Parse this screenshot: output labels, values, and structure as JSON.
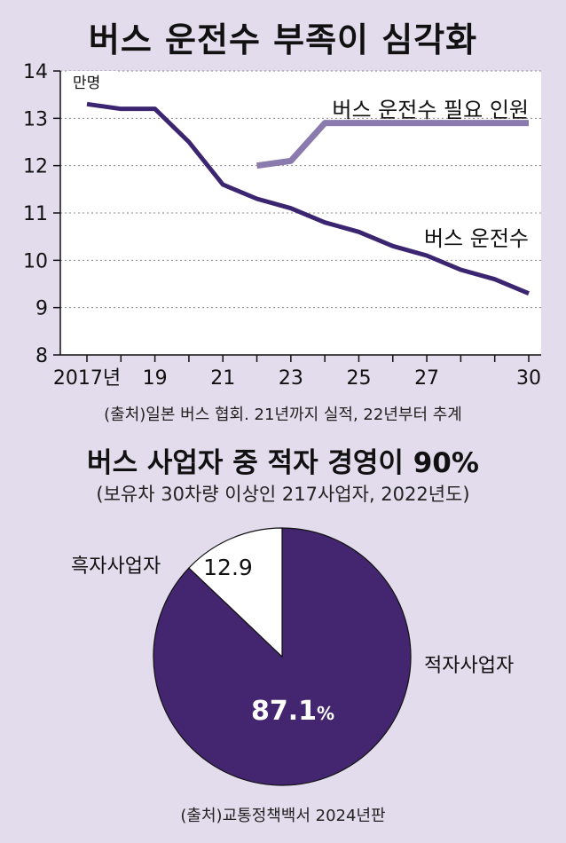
{
  "title": "버스 운전수 부족이 심각화",
  "chart_data": [
    {
      "type": "line",
      "unit_label": "만명",
      "x": [
        2017,
        2018,
        2019,
        2020,
        2021,
        2022,
        2023,
        2024,
        2025,
        2026,
        2027,
        2028,
        2029,
        2030
      ],
      "x_tick_values": [
        2017,
        2019,
        2021,
        2023,
        2025,
        2027,
        2030
      ],
      "x_tick_labels": [
        "2017년",
        "19",
        "21",
        "23",
        "25",
        "27",
        "30"
      ],
      "y_ticks": [
        8,
        9,
        10,
        11,
        12,
        13,
        14
      ],
      "ylim": [
        8,
        14
      ],
      "grid": true,
      "series": [
        {
          "name": "버스 운전수 필요 인원",
          "color": "#8a7aad",
          "x": [
            2022,
            2023,
            2024,
            2025,
            2026,
            2027,
            2028,
            2029,
            2030
          ],
          "values": [
            12.0,
            12.1,
            12.9,
            12.9,
            12.9,
            12.9,
            12.9,
            12.9,
            12.9
          ]
        },
        {
          "name": "버스 운전수",
          "color": "#3b2570",
          "x": [
            2017,
            2018,
            2019,
            2020,
            2021,
            2022,
            2023,
            2024,
            2025,
            2026,
            2027,
            2028,
            2029,
            2030
          ],
          "values": [
            13.3,
            13.2,
            13.2,
            12.5,
            11.6,
            11.3,
            11.1,
            10.8,
            10.6,
            10.3,
            10.1,
            9.8,
            9.6,
            9.3
          ]
        }
      ]
    },
    {
      "type": "pie",
      "title": "버스 사업자 중 적자 경영이 90%",
      "subtitle": "(보유차 30차량 이상인 217사업자, 2022년도)",
      "slices": [
        {
          "label": "흑자사업자",
          "value": 12.9,
          "value_text": "12.9",
          "color": "#ffffff"
        },
        {
          "label": "적자사업자",
          "value": 87.1,
          "value_text": "87.1",
          "suffix": "%",
          "color": "#43266f"
        }
      ]
    }
  ],
  "source_line": "(출처)일본 버스 협회. 21년까지 실적, 22년부터 추계",
  "source_pie": "(출처)교통정책백서 2024년판"
}
